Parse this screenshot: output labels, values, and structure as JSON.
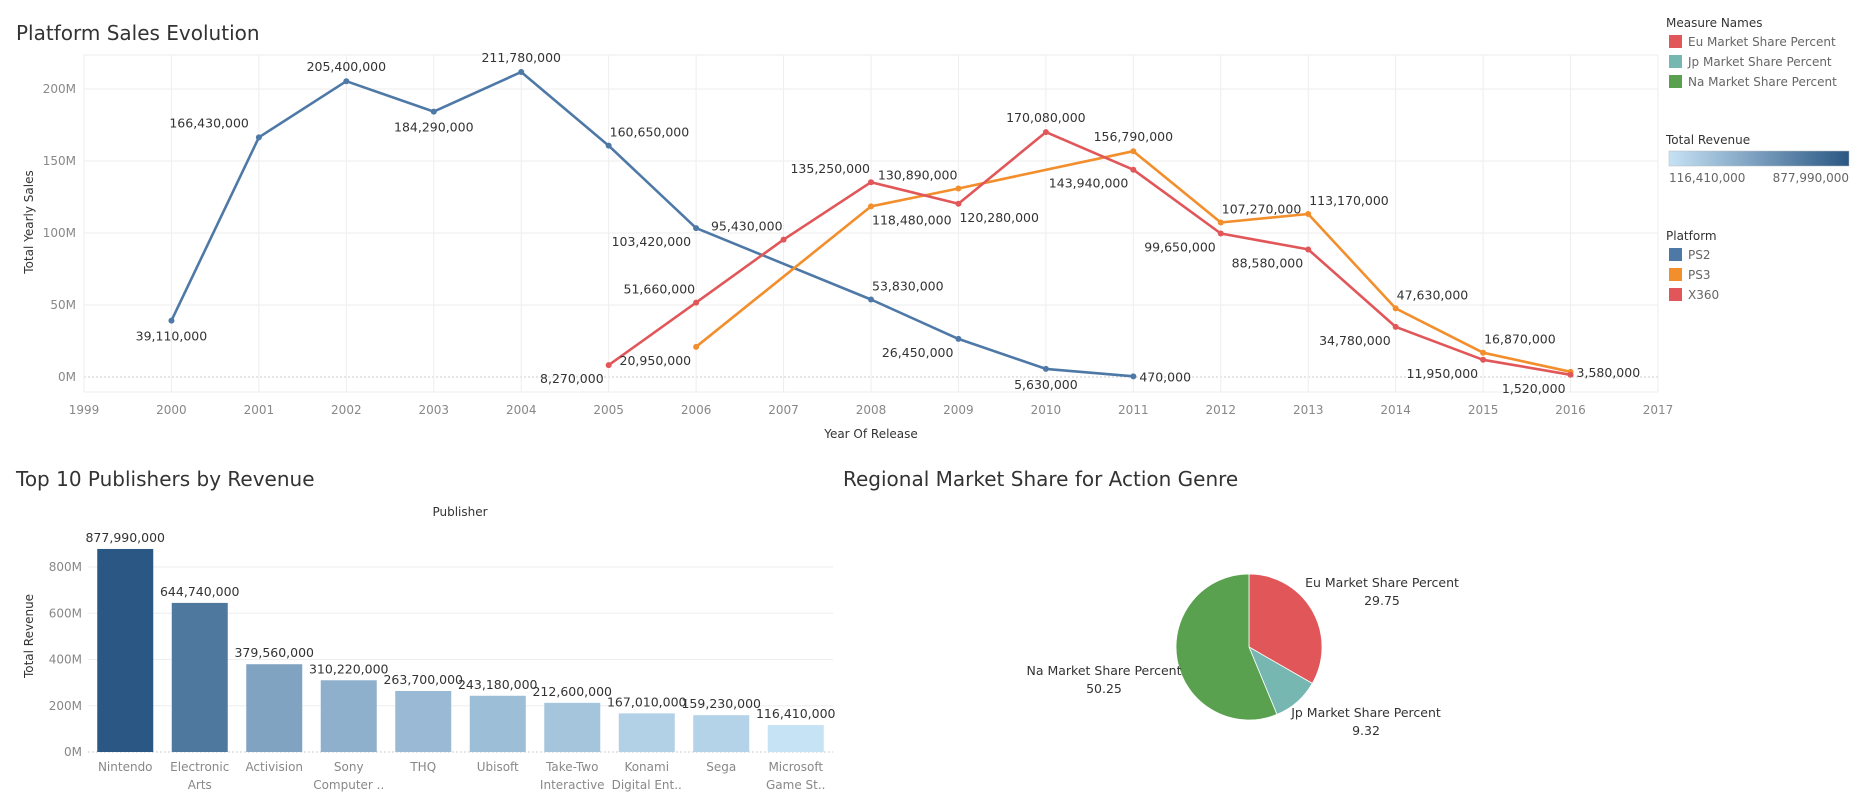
{
  "chart_data": [
    {
      "type": "line",
      "title": "Platform Sales Evolution",
      "xlabel": "Year Of Release",
      "ylabel": "Total Yearly Sales",
      "xlim": [
        1999,
        2017
      ],
      "ylim": [
        0,
        220000000
      ],
      "x_ticks": [
        "1999",
        "2000",
        "2001",
        "2002",
        "2003",
        "2004",
        "2005",
        "2006",
        "2007",
        "2008",
        "2009",
        "2010",
        "2011",
        "2012",
        "2013",
        "2014",
        "2015",
        "2016",
        "2017"
      ],
      "y_ticks": [
        {
          "value": 0,
          "label": "0M"
        },
        {
          "value": 50000000,
          "label": "50M"
        },
        {
          "value": 100000000,
          "label": "100M"
        },
        {
          "value": 150000000,
          "label": "150M"
        },
        {
          "value": 200000000,
          "label": "200M"
        }
      ],
      "series": [
        {
          "name": "PS2",
          "color": "#4e79a7",
          "points": [
            {
              "x": 2000,
              "y": 39110000,
              "label": "39,110,000",
              "pos": "below"
            },
            {
              "x": 2001,
              "y": 166430000,
              "label": "166,430,000",
              "pos": "left"
            },
            {
              "x": 2002,
              "y": 205400000,
              "label": "205,400,000",
              "pos": "above"
            },
            {
              "x": 2003,
              "y": 184290000,
              "label": "184,290,000",
              "pos": "below"
            },
            {
              "x": 2004,
              "y": 211780000,
              "label": "211,780,000",
              "pos": "above"
            },
            {
              "x": 2005,
              "y": 160650000,
              "label": "160,650,000",
              "pos": "aboveright"
            },
            {
              "x": 2006,
              "y": 103420000,
              "label": "103,420,000",
              "pos": "belowleft"
            },
            {
              "x": 2008,
              "y": 53830000,
              "label": "53,830,000",
              "pos": "aboveright"
            },
            {
              "x": 2009,
              "y": 26450000,
              "label": "26,450,000",
              "pos": "belowleft"
            },
            {
              "x": 2010,
              "y": 5630000,
              "label": "5,630,000",
              "pos": "below"
            },
            {
              "x": 2011,
              "y": 470000,
              "label": "470,000",
              "pos": "right"
            }
          ]
        },
        {
          "name": "PS3",
          "color": "#f28e2b",
          "points": [
            {
              "x": 2006,
              "y": 20950000,
              "label": "20,950,000",
              "pos": "belowleft"
            },
            {
              "x": 2008,
              "y": 118480000,
              "label": "118,480,000",
              "pos": "belowright"
            },
            {
              "x": 2009,
              "y": 130890000,
              "label": "130,890,000",
              "pos": "aboveleft"
            },
            {
              "x": 2011,
              "y": 156790000,
              "label": "156,790,000",
              "pos": "above"
            },
            {
              "x": 2012,
              "y": 107270000,
              "label": "107,270,000",
              "pos": "aboveright"
            },
            {
              "x": 2013,
              "y": 113170000,
              "label": "113,170,000",
              "pos": "aboveright"
            },
            {
              "x": 2014,
              "y": 47630000,
              "label": "47,630,000",
              "pos": "aboveright"
            },
            {
              "x": 2015,
              "y": 16870000,
              "label": "16,870,000",
              "pos": "aboveright"
            },
            {
              "x": 2016,
              "y": 3580000,
              "label": "3,580,000",
              "pos": "right"
            }
          ]
        },
        {
          "name": "X360",
          "color": "#e15759",
          "points": [
            {
              "x": 2005,
              "y": 8270000,
              "label": "8,270,000",
              "pos": "belowleft"
            },
            {
              "x": 2006,
              "y": 51660000,
              "label": "51,660,000",
              "pos": "aboveleft"
            },
            {
              "x": 2007,
              "y": 95430000,
              "label": "95,430,000",
              "pos": "aboveleft"
            },
            {
              "x": 2008,
              "y": 135250000,
              "label": "135,250,000",
              "pos": "aboveleft"
            },
            {
              "x": 2009,
              "y": 120280000,
              "label": "120,280,000",
              "pos": "belowright"
            },
            {
              "x": 2010,
              "y": 170080000,
              "label": "170,080,000",
              "pos": "above"
            },
            {
              "x": 2011,
              "y": 143940000,
              "label": "143,940,000",
              "pos": "belowleft"
            },
            {
              "x": 2012,
              "y": 99650000,
              "label": "99,650,000",
              "pos": "belowleft"
            },
            {
              "x": 2013,
              "y": 88580000,
              "label": "88,580,000",
              "pos": "belowleft"
            },
            {
              "x": 2014,
              "y": 34780000,
              "label": "34,780,000",
              "pos": "belowleft"
            },
            {
              "x": 2015,
              "y": 11950000,
              "label": "11,950,000",
              "pos": "belowleft"
            },
            {
              "x": 2016,
              "y": 1520000,
              "label": "1,520,000",
              "pos": "belowleft"
            }
          ]
        }
      ]
    },
    {
      "type": "bar",
      "title": "Top 10 Publishers by Revenue",
      "column_header": "Publisher",
      "ylabel": "Total Revenue",
      "ylim": [
        0,
        900000000
      ],
      "y_ticks": [
        {
          "value": 0,
          "label": "0M"
        },
        {
          "value": 200000000,
          "label": "200M"
        },
        {
          "value": 400000000,
          "label": "400M"
        },
        {
          "value": 600000000,
          "label": "600M"
        },
        {
          "value": 800000000,
          "label": "800M"
        }
      ],
      "bars": [
        {
          "category": [
            "Nintendo"
          ],
          "value": 877990000,
          "label": "877,990,000"
        },
        {
          "category": [
            "Electronic",
            "Arts"
          ],
          "value": 644740000,
          "label": "644,740,000"
        },
        {
          "category": [
            "Activision"
          ],
          "value": 379560000,
          "label": "379,560,000"
        },
        {
          "category": [
            "Sony",
            "Computer .."
          ],
          "value": 310220000,
          "label": "310,220,000"
        },
        {
          "category": [
            "THQ"
          ],
          "value": 263700000,
          "label": "263,700,000"
        },
        {
          "category": [
            "Ubisoft"
          ],
          "value": 243180000,
          "label": "243,180,000"
        },
        {
          "category": [
            "Take-Two",
            "Interactive"
          ],
          "value": 212600000,
          "label": "212,600,000"
        },
        {
          "category": [
            "Konami",
            "Digital Ent.."
          ],
          "value": 167010000,
          "label": "167,010,000"
        },
        {
          "category": [
            "Sega"
          ],
          "value": 159230000,
          "label": "159,230,000"
        },
        {
          "category": [
            "Microsoft",
            "Game St.."
          ],
          "value": 116410000,
          "label": "116,410,000"
        }
      ],
      "color_legend": {
        "title": "Total Revenue",
        "min_label": "116,410,000",
        "max_label": "877,990,000",
        "min": 116410000,
        "max": 877990000,
        "low_color": "#c6e2f5",
        "high_color": "#2a5783"
      }
    },
    {
      "type": "pie",
      "title": "Regional Market Share for Action Genre",
      "slices": [
        {
          "name": "Eu Market Share Percent",
          "value": 29.75,
          "value_label": "29.75",
          "color": "#e15759"
        },
        {
          "name": "Jp Market Share Percent",
          "value": 9.32,
          "value_label": "9.32",
          "color": "#76b7b2"
        },
        {
          "name": "Na Market Share Percent",
          "value": 50.25,
          "value_label": "50.25",
          "color": "#59a14f"
        }
      ]
    }
  ],
  "legends": {
    "measure_names": {
      "title": "Measure Names",
      "items": [
        {
          "label": "Eu Market Share Percent",
          "color": "#e15759"
        },
        {
          "label": "Jp Market Share Percent",
          "color": "#76b7b2"
        },
        {
          "label": "Na Market Share Percent",
          "color": "#59a14f"
        }
      ]
    },
    "platform": {
      "title": "Platform",
      "items": [
        {
          "label": "PS2",
          "color": "#4e79a7"
        },
        {
          "label": "PS3",
          "color": "#f28e2b"
        },
        {
          "label": "X360",
          "color": "#e15759"
        }
      ]
    }
  }
}
